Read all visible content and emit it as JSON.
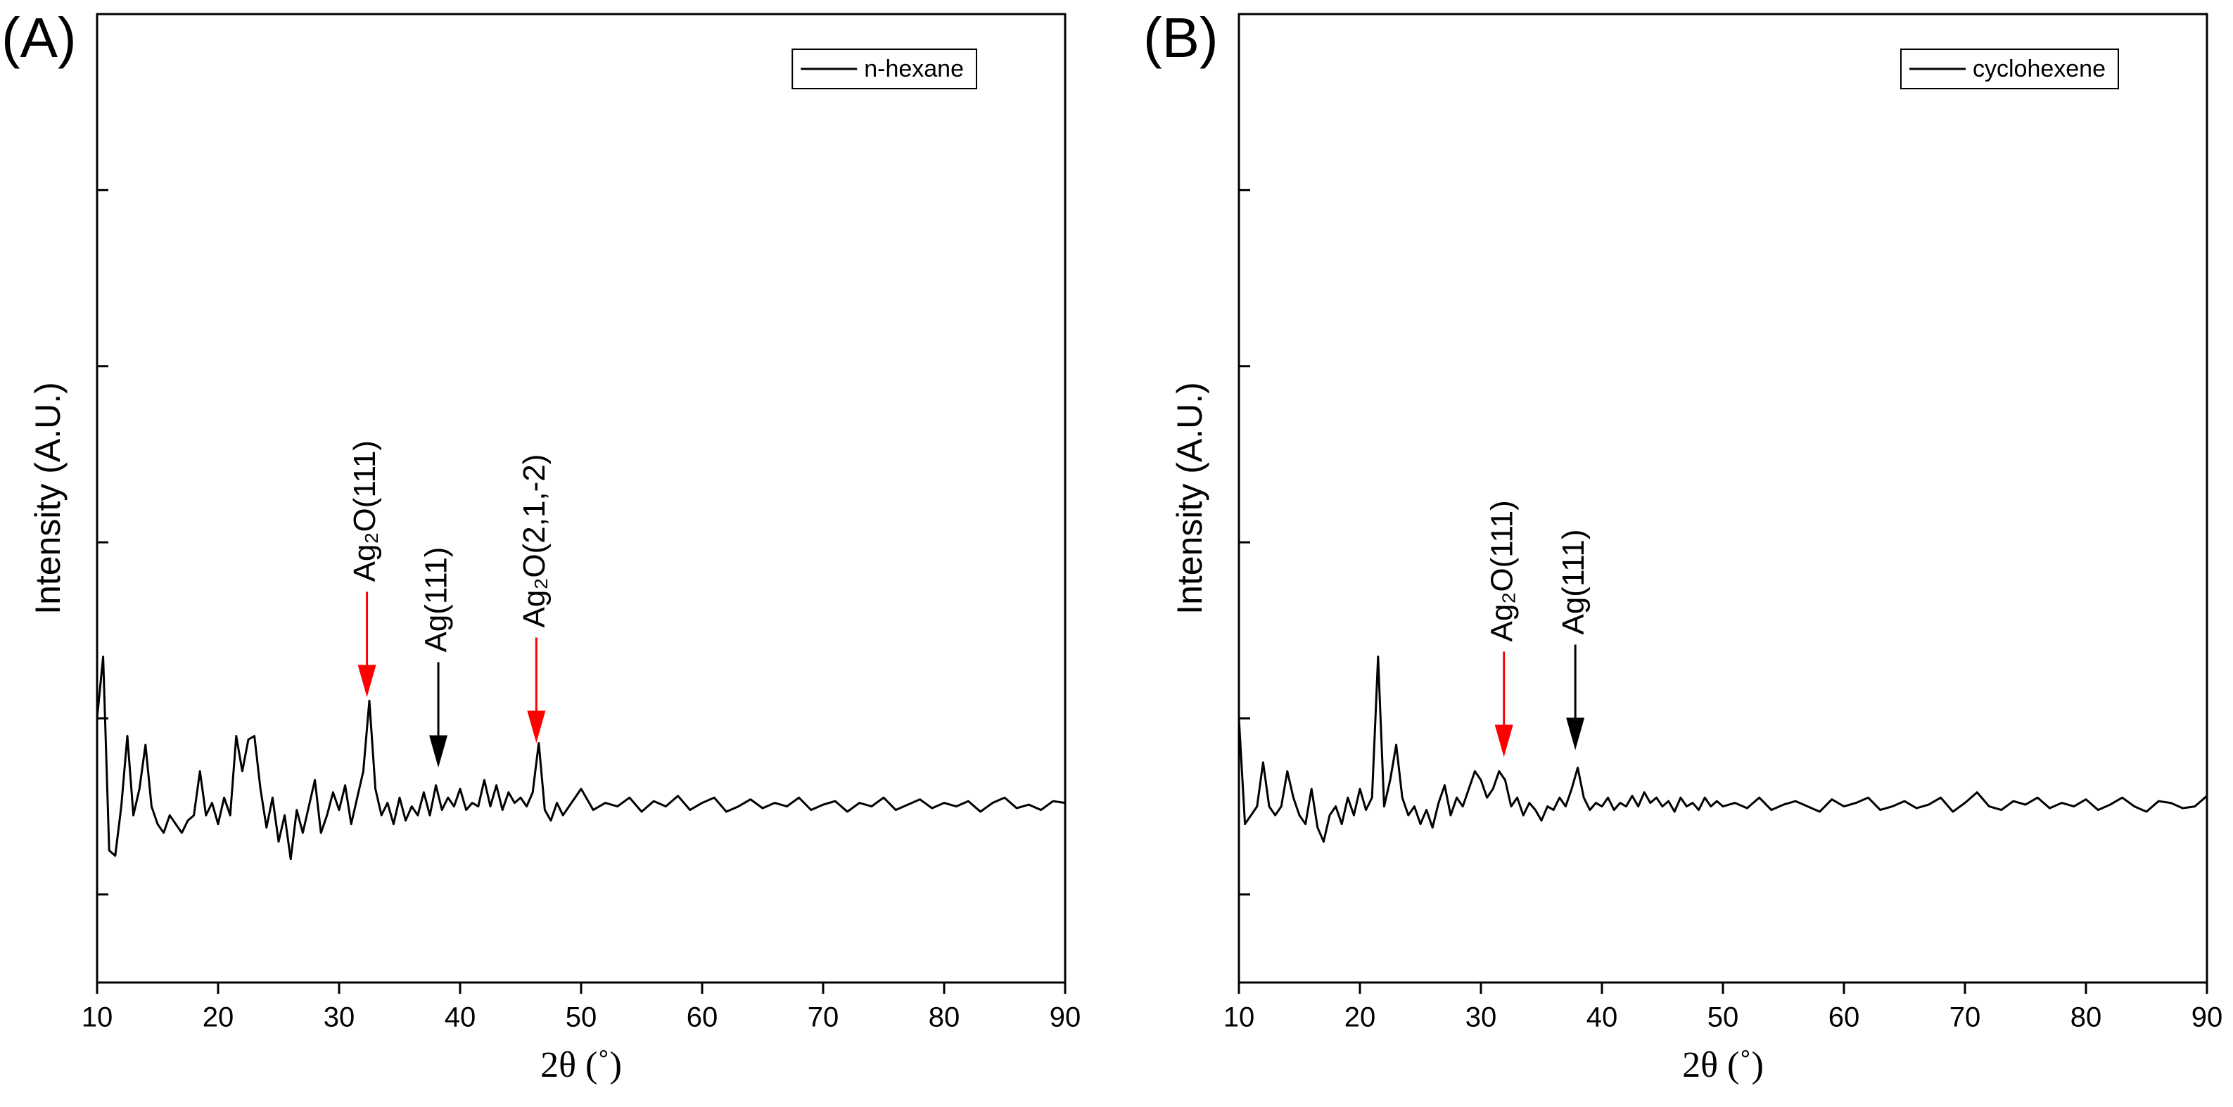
{
  "chart_data": [
    {
      "type": "line",
      "label": "(A)",
      "xlabel": "2θ (˚)",
      "ylabel": "Intensity (A.U.)",
      "x": [
        10,
        10.5,
        11,
        11.5,
        12,
        12.5,
        13,
        13.5,
        14,
        14.5,
        15,
        15.5,
        16,
        16.5,
        17,
        17.5,
        18,
        18.5,
        19,
        19.5,
        20,
        20.5,
        21,
        21.5,
        22,
        22.5,
        23,
        23.5,
        24,
        24.5,
        25,
        25.5,
        26,
        26.5,
        27,
        27.5,
        28,
        28.5,
        29,
        29.5,
        30,
        30.5,
        31,
        31.5,
        32,
        32.5,
        33,
        33.5,
        34,
        34.5,
        35,
        35.5,
        36,
        36.5,
        37,
        37.5,
        38,
        38.5,
        39,
        39.5,
        40,
        40.5,
        41,
        41.5,
        42,
        42.5,
        43,
        43.5,
        44,
        44.5,
        45,
        45.5,
        46,
        46.5,
        47,
        47.5,
        48,
        48.5,
        49,
        49.5,
        50,
        51,
        52,
        53,
        54,
        55,
        56,
        57,
        58,
        59,
        60,
        61,
        62,
        63,
        64,
        65,
        66,
        67,
        68,
        69,
        70,
        71,
        72,
        73,
        74,
        75,
        76,
        77,
        78,
        79,
        80,
        81,
        82,
        83,
        84,
        85,
        86,
        87,
        88,
        89,
        90
      ],
      "series": [
        {
          "name": "n-hexane",
          "color": "#000000",
          "values": [
            2.0,
            2.35,
            1.25,
            1.22,
            1.5,
            1.9,
            1.45,
            1.6,
            1.85,
            1.5,
            1.4,
            1.35,
            1.45,
            1.4,
            1.35,
            1.42,
            1.45,
            1.7,
            1.45,
            1.52,
            1.4,
            1.55,
            1.45,
            1.9,
            1.7,
            1.88,
            1.9,
            1.6,
            1.38,
            1.55,
            1.3,
            1.45,
            1.2,
            1.48,
            1.35,
            1.5,
            1.65,
            1.35,
            1.45,
            1.58,
            1.48,
            1.62,
            1.4,
            1.55,
            1.7,
            2.1,
            1.6,
            1.45,
            1.52,
            1.4,
            1.55,
            1.42,
            1.5,
            1.45,
            1.58,
            1.45,
            1.62,
            1.48,
            1.55,
            1.5,
            1.6,
            1.48,
            1.52,
            1.5,
            1.65,
            1.5,
            1.62,
            1.48,
            1.58,
            1.52,
            1.55,
            1.5,
            1.58,
            1.86,
            1.48,
            1.42,
            1.52,
            1.45,
            1.5,
            1.55,
            1.6,
            1.48,
            1.52,
            1.5,
            1.55,
            1.47,
            1.53,
            1.5,
            1.56,
            1.48,
            1.52,
            1.55,
            1.47,
            1.5,
            1.54,
            1.49,
            1.52,
            1.5,
            1.55,
            1.48,
            1.51,
            1.53,
            1.47,
            1.52,
            1.5,
            1.55,
            1.48,
            1.51,
            1.54,
            1.49,
            1.52,
            1.5,
            1.53,
            1.47,
            1.52,
            1.55,
            1.49,
            1.51,
            1.48,
            1.53,
            1.52
          ]
        }
      ],
      "xlim": [
        10,
        90
      ],
      "xticks": [
        10,
        20,
        30,
        40,
        50,
        60,
        70,
        80,
        90
      ],
      "ylim": [
        0.5,
        6
      ],
      "yticks": [
        1,
        2,
        3,
        4,
        5,
        6
      ],
      "legend": "upper right",
      "annotations": [
        {
          "text": "Ag₂O(111)",
          "color": "#ff0000",
          "x": 32.3,
          "y": 2.12
        },
        {
          "text": "Ag(111)",
          "color": "#000000",
          "x": 38.2,
          "y": 1.72
        },
        {
          "text": "Ag₂O(2,1,-2)",
          "color": "#ff0000",
          "x": 46.3,
          "y": 1.86
        }
      ]
    },
    {
      "type": "line",
      "label": "(B)",
      "xlabel": "2θ (˚)",
      "ylabel": "Intensity (A.U.)",
      "x": [
        10,
        10.5,
        11,
        11.5,
        12,
        12.5,
        13,
        13.5,
        14,
        14.5,
        15,
        15.5,
        16,
        16.5,
        17,
        17.5,
        18,
        18.5,
        19,
        19.5,
        20,
        20.5,
        21,
        21.5,
        22,
        22.5,
        23,
        23.5,
        24,
        24.5,
        25,
        25.5,
        26,
        26.5,
        27,
        27.5,
        28,
        28.5,
        29,
        29.5,
        30,
        30.5,
        31,
        31.5,
        32,
        32.5,
        33,
        33.5,
        34,
        34.5,
        35,
        35.5,
        36,
        36.5,
        37,
        37.5,
        38,
        38.5,
        39,
        39.5,
        40,
        40.5,
        41,
        41.5,
        42,
        42.5,
        43,
        43.5,
        44,
        44.5,
        45,
        45.5,
        46,
        46.5,
        47,
        47.5,
        48,
        48.5,
        49,
        49.5,
        50,
        51,
        52,
        53,
        54,
        55,
        56,
        57,
        58,
        59,
        60,
        61,
        62,
        63,
        64,
        65,
        66,
        67,
        68,
        69,
        70,
        71,
        72,
        73,
        74,
        75,
        76,
        77,
        78,
        79,
        80,
        81,
        82,
        83,
        84,
        85,
        86,
        87,
        88,
        89,
        90
      ],
      "series": [
        {
          "name": "cyclohexene",
          "color": "#000000",
          "values": [
            2.0,
            1.4,
            1.45,
            1.5,
            1.75,
            1.5,
            1.45,
            1.5,
            1.7,
            1.55,
            1.45,
            1.4,
            1.6,
            1.38,
            1.3,
            1.45,
            1.5,
            1.4,
            1.55,
            1.45,
            1.6,
            1.48,
            1.55,
            2.35,
            1.5,
            1.65,
            1.85,
            1.55,
            1.45,
            1.5,
            1.4,
            1.48,
            1.38,
            1.52,
            1.62,
            1.45,
            1.55,
            1.5,
            1.6,
            1.7,
            1.65,
            1.55,
            1.6,
            1.7,
            1.65,
            1.5,
            1.55,
            1.45,
            1.52,
            1.48,
            1.42,
            1.5,
            1.48,
            1.55,
            1.5,
            1.6,
            1.72,
            1.55,
            1.48,
            1.52,
            1.5,
            1.55,
            1.48,
            1.52,
            1.5,
            1.56,
            1.5,
            1.58,
            1.52,
            1.55,
            1.5,
            1.53,
            1.47,
            1.55,
            1.5,
            1.52,
            1.48,
            1.55,
            1.5,
            1.53,
            1.5,
            1.52,
            1.49,
            1.55,
            1.48,
            1.51,
            1.53,
            1.5,
            1.47,
            1.54,
            1.5,
            1.52,
            1.55,
            1.48,
            1.5,
            1.53,
            1.49,
            1.51,
            1.55,
            1.47,
            1.52,
            1.58,
            1.5,
            1.48,
            1.53,
            1.51,
            1.55,
            1.49,
            1.52,
            1.5,
            1.54,
            1.48,
            1.51,
            1.55,
            1.5,
            1.47,
            1.53,
            1.52,
            1.49,
            1.5,
            1.56
          ]
        }
      ],
      "xlim": [
        10,
        90
      ],
      "xticks": [
        10,
        20,
        30,
        40,
        50,
        60,
        70,
        80,
        90
      ],
      "ylim": [
        0.5,
        6
      ],
      "yticks": [
        1,
        2,
        3,
        4,
        5,
        6
      ],
      "legend": "upper right",
      "annotations": [
        {
          "text": "Ag₂O(111)",
          "color": "#ff0000",
          "x": 31.9,
          "y": 1.78
        },
        {
          "text": "Ag(111)",
          "color": "#000000",
          "x": 37.8,
          "y": 1.82
        }
      ]
    }
  ]
}
